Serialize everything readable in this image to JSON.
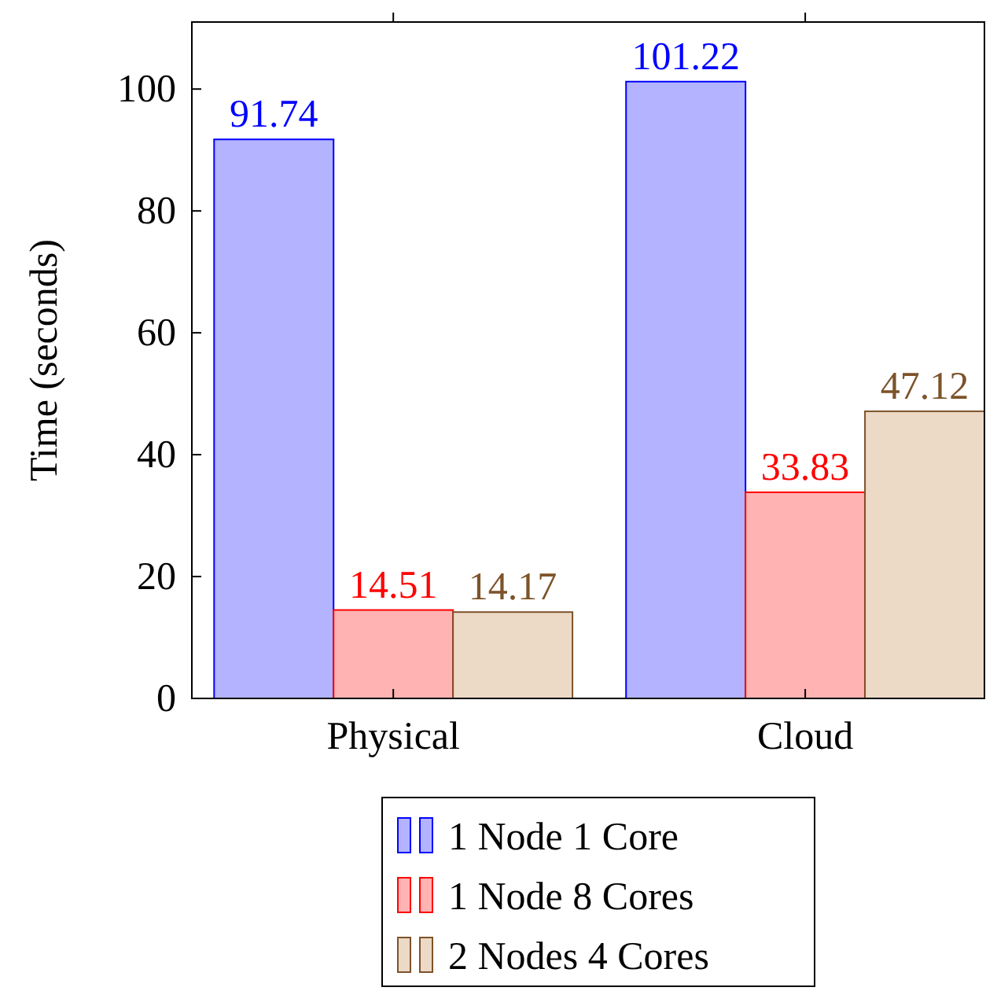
{
  "chart_data": {
    "type": "bar",
    "ylabel": "Time (seconds)",
    "categories": [
      "Physical",
      "Cloud"
    ],
    "series": [
      {
        "name": "1 Node 1 Core",
        "color": "#b3b3ff",
        "values": [
          91.74,
          101.22
        ]
      },
      {
        "name": "1 Node 8 Cores",
        "color": "#ffb3b3",
        "values": [
          14.51,
          33.83
        ]
      },
      {
        "name": "2 Nodes 4 Cores",
        "color": "#ecd9c6",
        "values": [
          14.17,
          47.12
        ]
      }
    ],
    "ylim": [
      0,
      111
    ],
    "yticks": [
      0,
      20,
      40,
      60,
      80,
      100
    ],
    "data_labels": true,
    "legend": "bottom",
    "grid": false
  }
}
